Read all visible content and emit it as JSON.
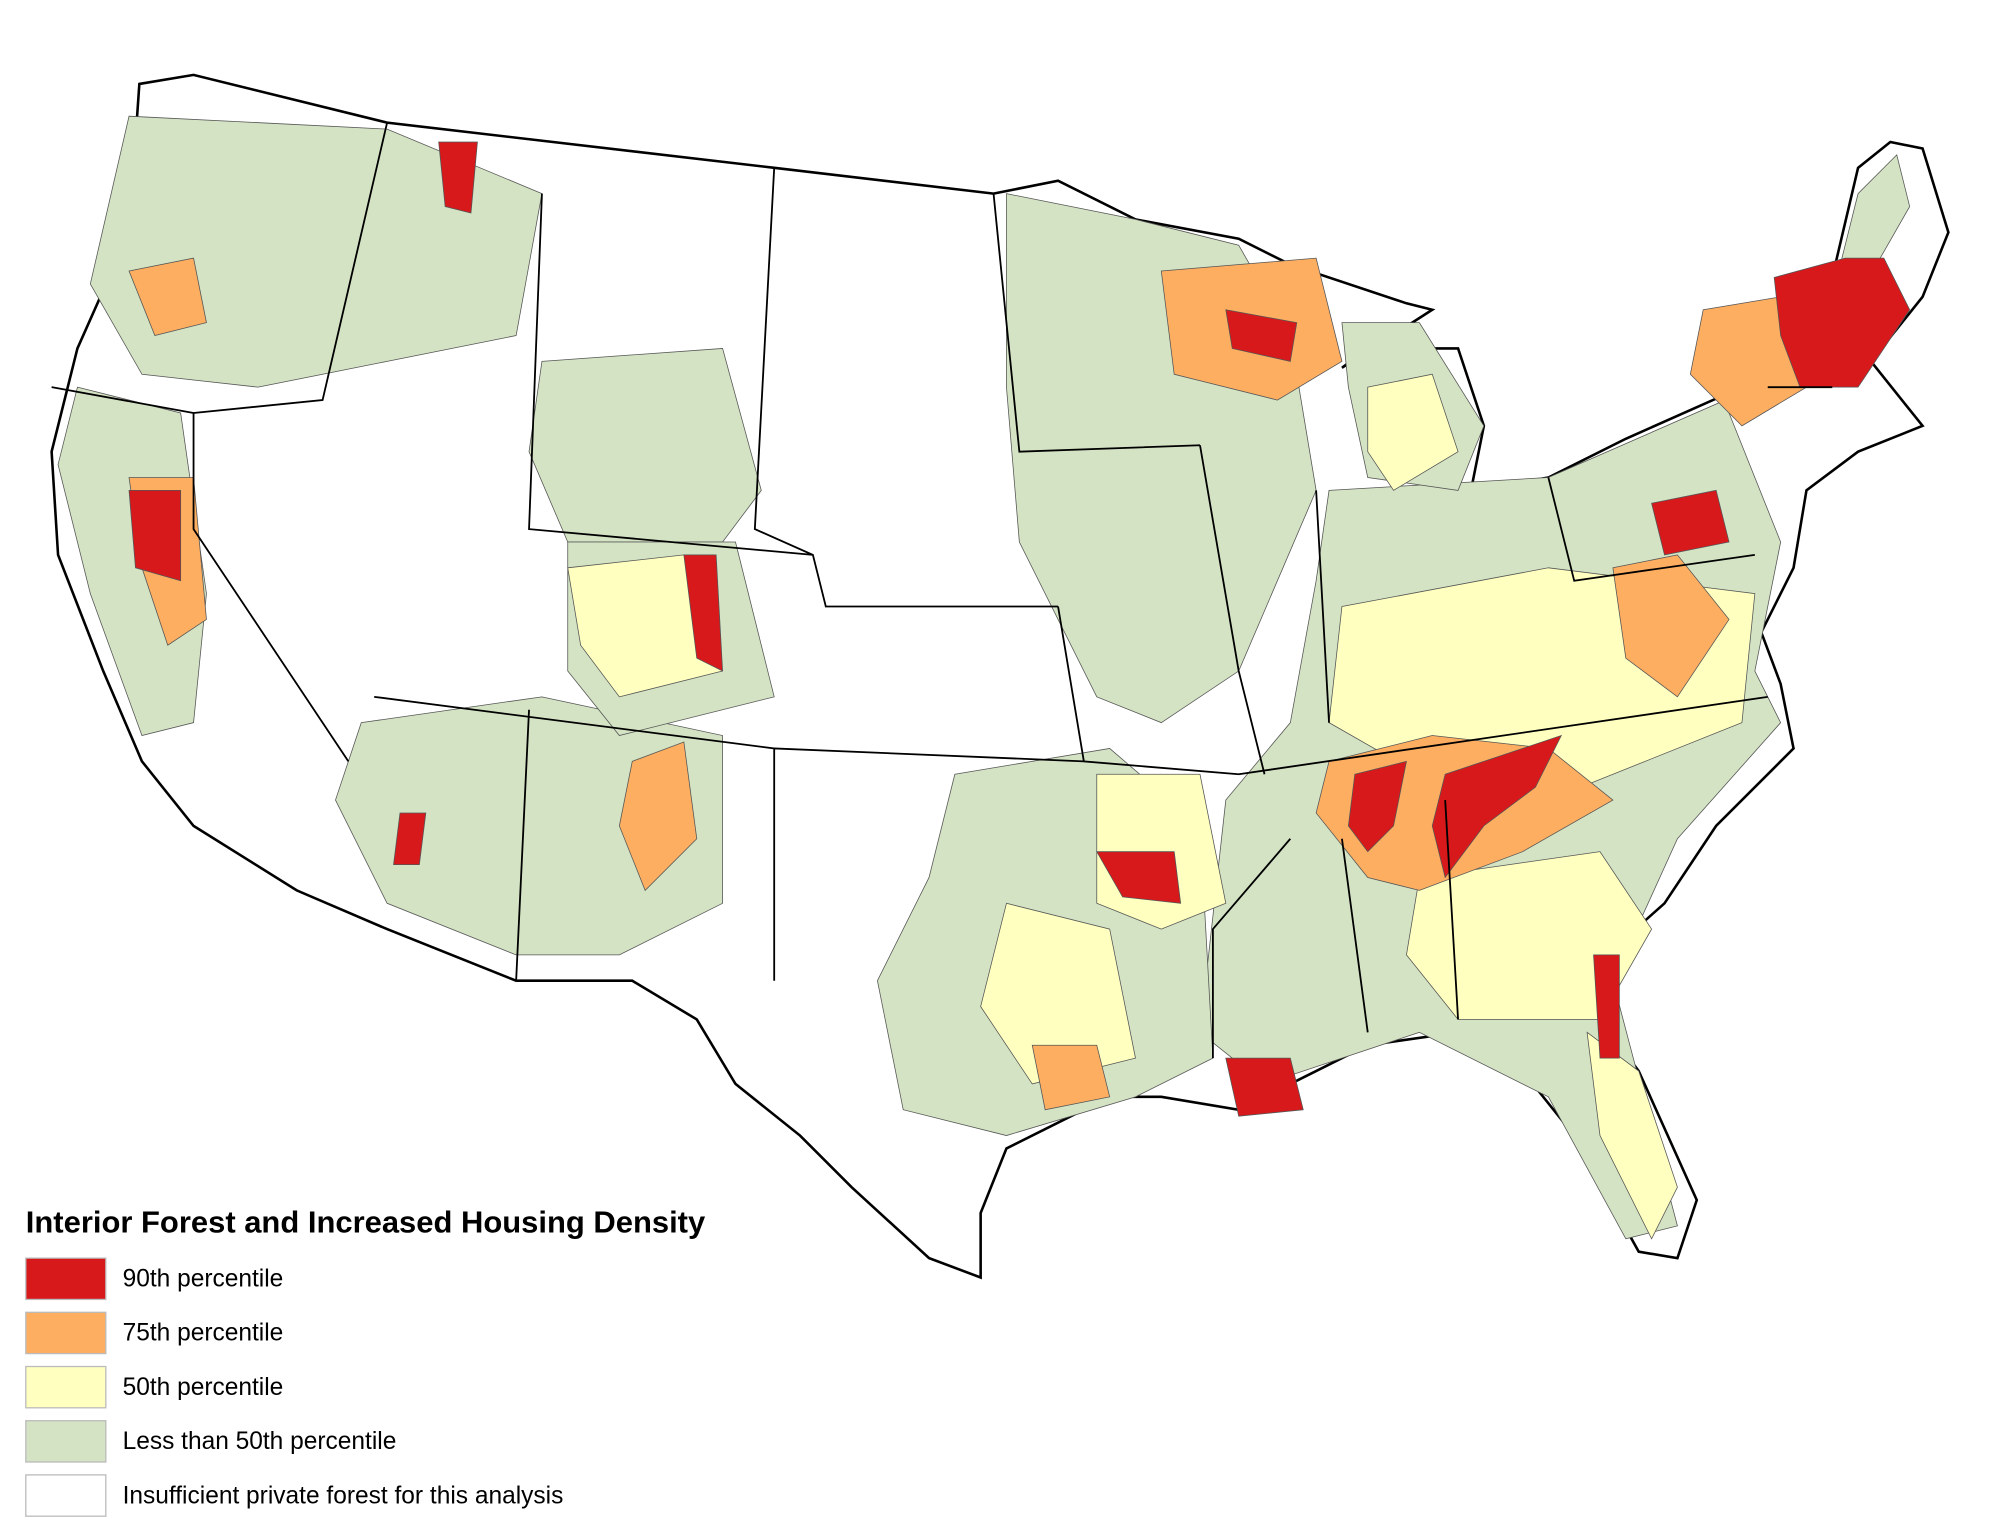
{
  "legend": {
    "title": "Interior Forest and Increased Housing Density",
    "items": [
      {
        "label": "90th percentile",
        "color": "#d7191c"
      },
      {
        "label": "75th percentile",
        "color": "#fdae61"
      },
      {
        "label": "50th percentile",
        "color": "#ffffc0"
      },
      {
        "label": "Less than 50th percentile",
        "color": "#d3e3c3"
      },
      {
        "label": "Insufficient private forest for this analysis",
        "color": "#ffffff"
      }
    ]
  }
}
